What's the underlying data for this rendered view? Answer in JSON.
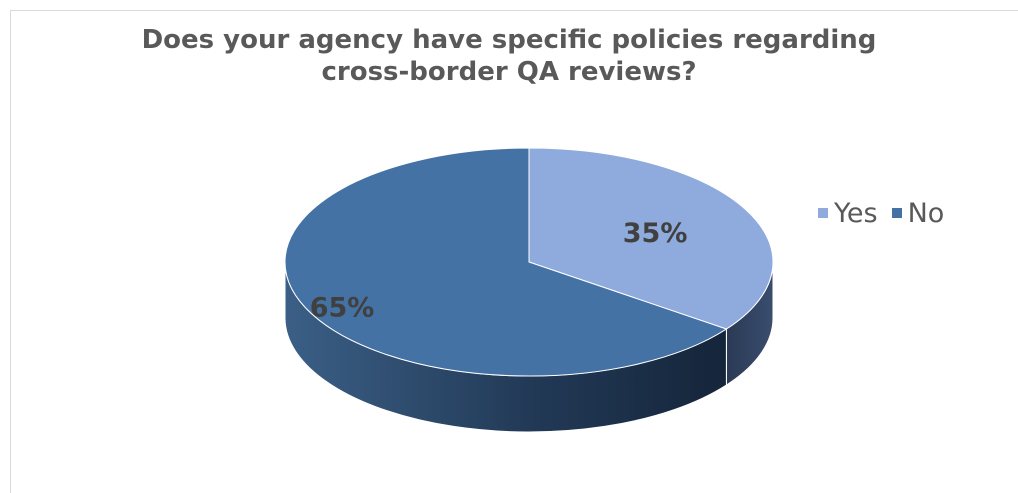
{
  "chart_data": {
    "type": "pie",
    "title": [
      "Does your agency have specific policies regarding",
      "cross-border QA reviews?"
    ],
    "slices": [
      {
        "label": "Yes",
        "value": 35,
        "display": "35%",
        "color": "#8FAADC"
      },
      {
        "label": "No",
        "value": 65,
        "display": "65%",
        "color": "#4472A4"
      }
    ],
    "legend_position": "right",
    "style": "3d"
  }
}
